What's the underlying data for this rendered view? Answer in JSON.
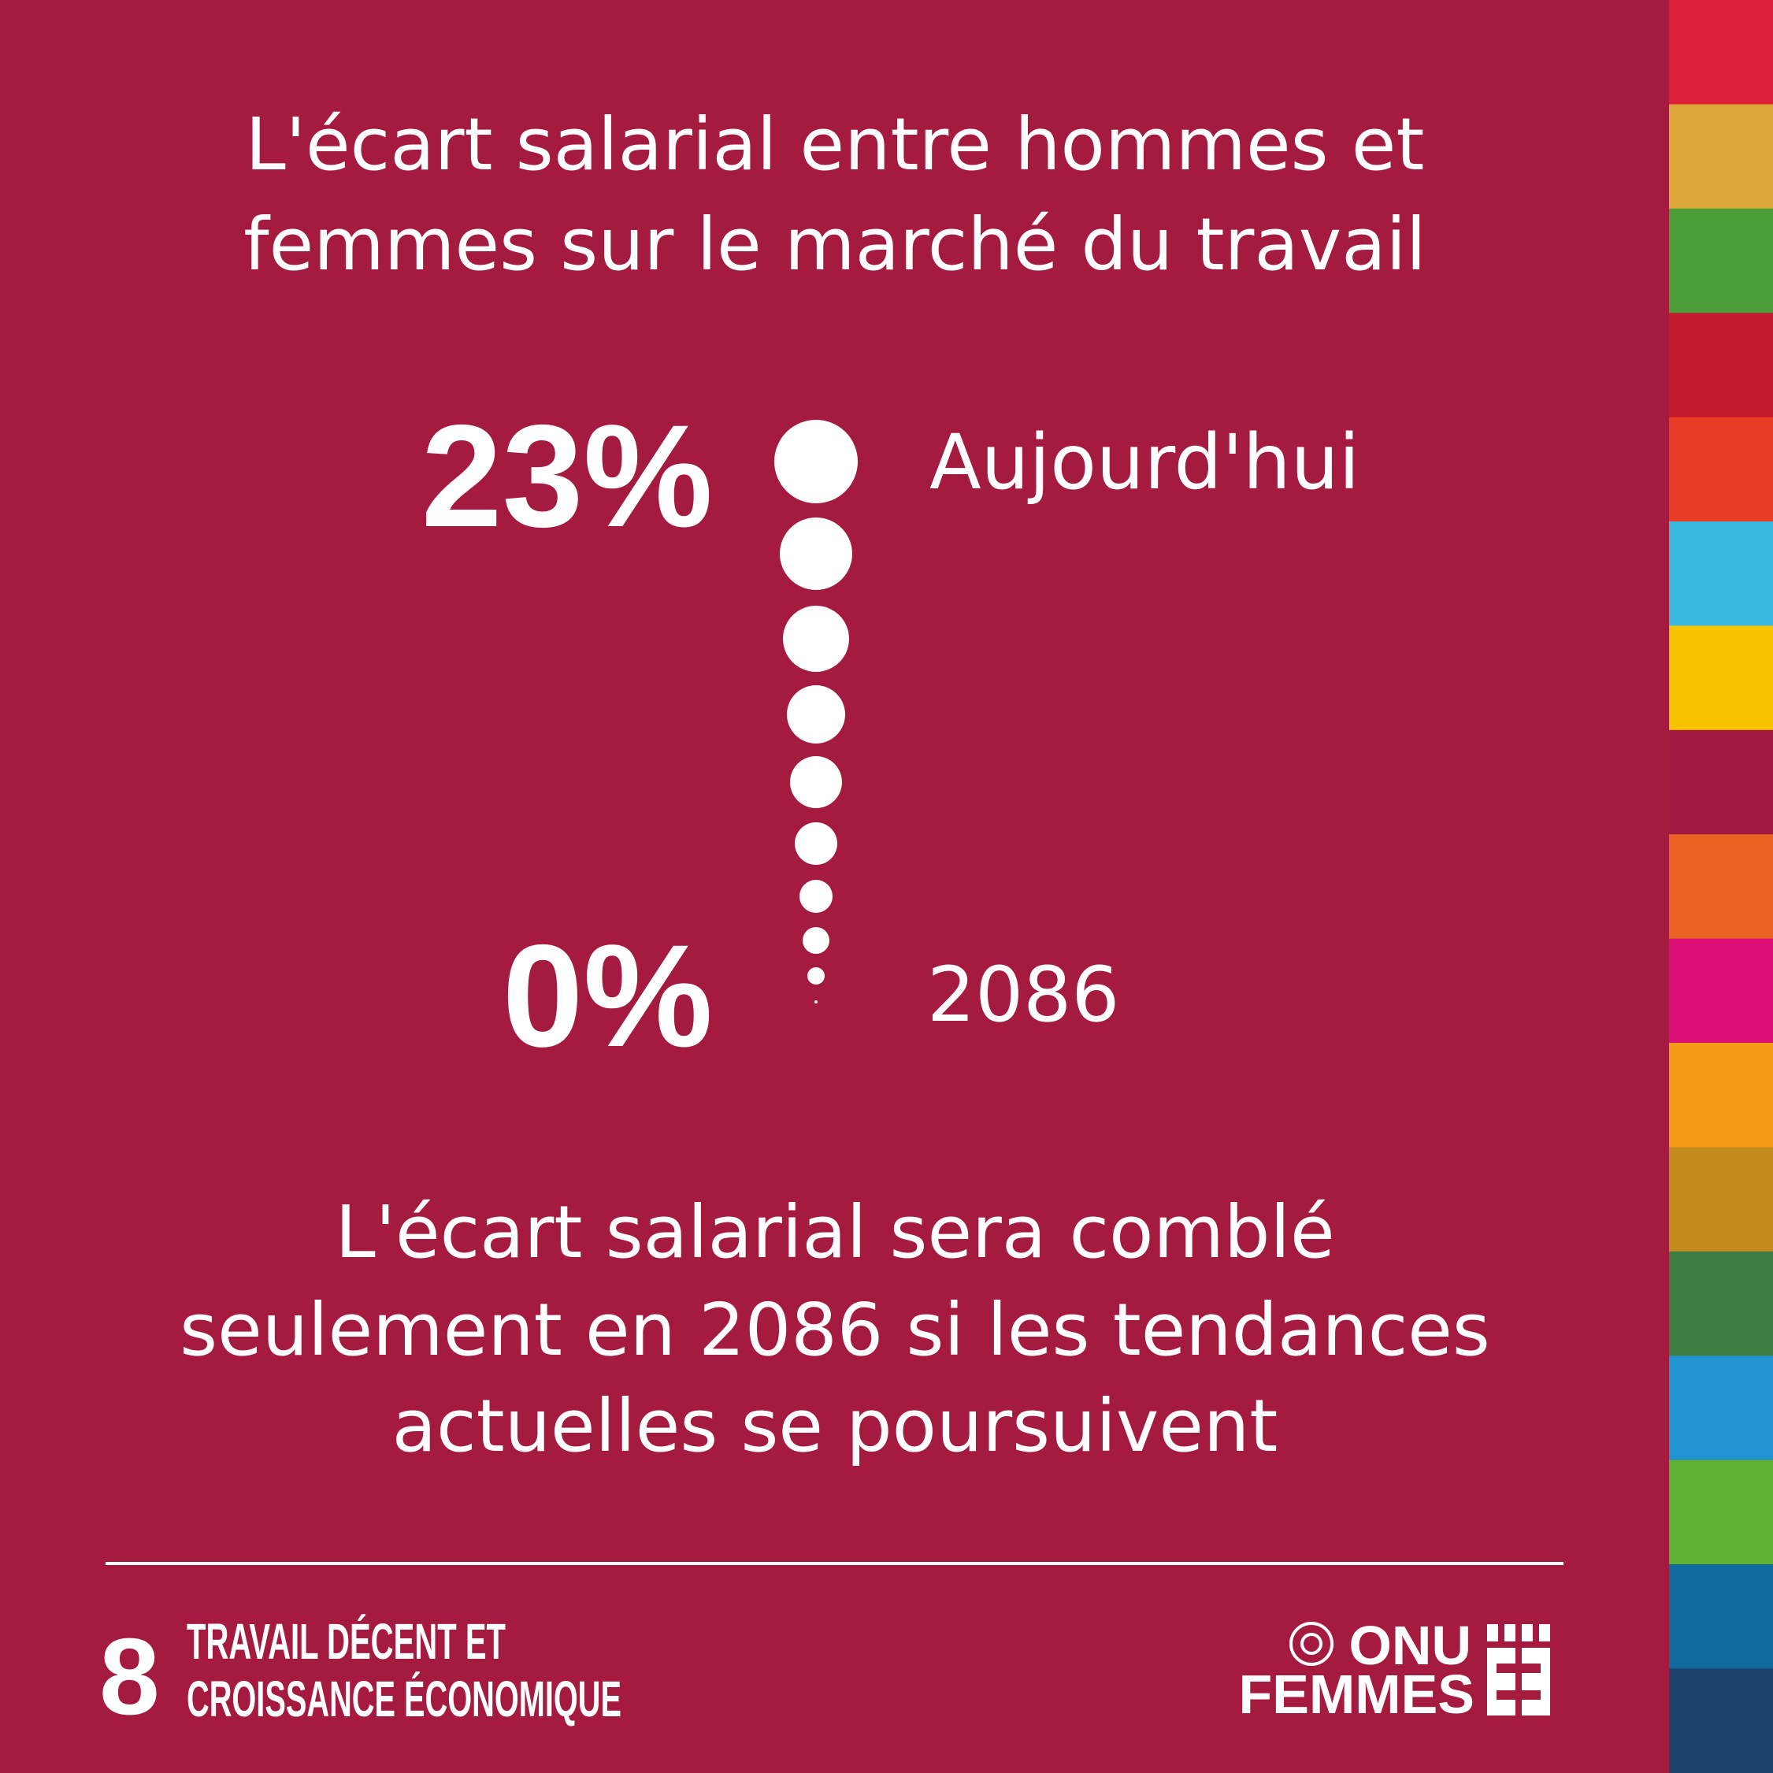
{
  "title": [
    "L'écart salarial entre hommes et",
    "femmes sur le marché du travail"
  ],
  "timeline": {
    "start_value": "23%",
    "start_label": "Aujourd'hui",
    "end_value": "0%",
    "end_label": "2086"
  },
  "message": [
    "L'écart salarial sera comblé",
    "seulement en 2086 si les tendances",
    "actuelles se poursuivent"
  ],
  "footer": {
    "goal_number": "8",
    "goal_text": [
      "TRAVAIL DÉCENT ET",
      "CROISSANCE ÉCONOMIQUE"
    ],
    "logo": [
      "ONU",
      "FEMMES"
    ]
  }
}
